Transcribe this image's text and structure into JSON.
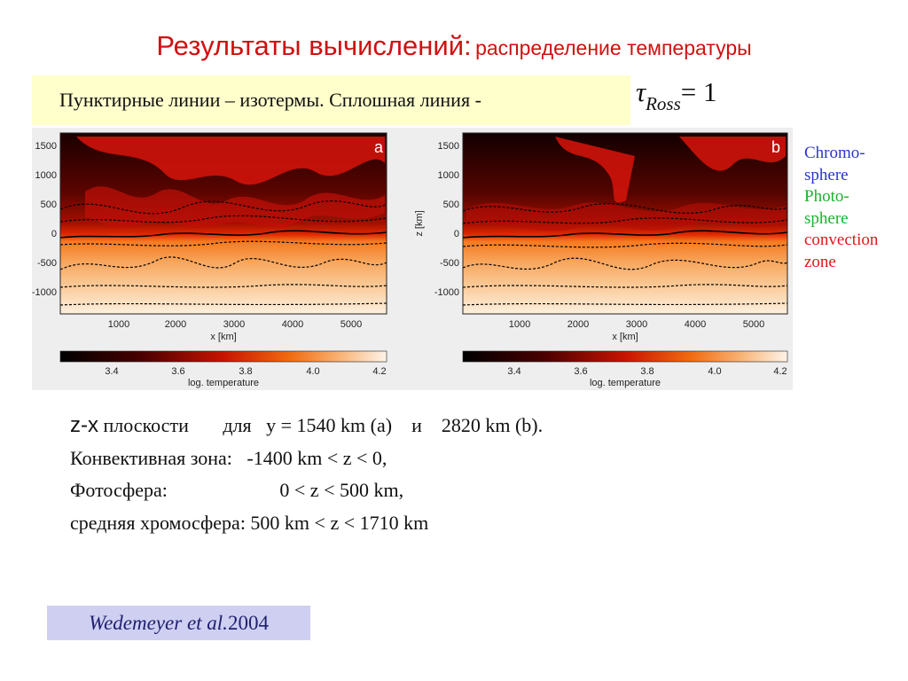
{
  "title": {
    "main": "Результаты вычислений:",
    "sub": "распределение температуры"
  },
  "note": {
    "text": "Пунктирные линии – изотермы. Сплошная линия -"
  },
  "tau": {
    "symbol": "τ",
    "sub": "Ross",
    "eq": "= 1"
  },
  "legend": {
    "items": [
      {
        "text": "Chromo-",
        "color": "#2a36c8"
      },
      {
        "text": "sphere",
        "color": "#2a36c8"
      },
      {
        "text": "Photo-",
        "color": "#18b42a"
      },
      {
        "text": "sphere",
        "color": "#18b42a"
      },
      {
        "text": "convection",
        "color": "#e01818"
      },
      {
        "text": "zone",
        "color": "#e01818"
      }
    ]
  },
  "panels": [
    {
      "letter": "a",
      "z_axis_label": ""
    },
    {
      "letter": "b",
      "z_axis_label": "z [km]"
    }
  ],
  "axes": {
    "x_label": "x [km]",
    "x_ticks": [
      "1000",
      "2000",
      "3000",
      "4000",
      "5000"
    ],
    "z_ticks": [
      "1500",
      "1000",
      "500",
      "0",
      "-500",
      "-1000"
    ],
    "colorbar_label": "log. temperature",
    "colorbar_ticks": [
      "3.4",
      "3.6",
      "3.8",
      "4.0",
      "4.2"
    ]
  },
  "body": {
    "line1_zx": "z-x",
    "line1_rest": " плоскости       для   y = 1540 km (a)    и    2820 km (b).",
    "line2": "Конвективная зона:   -1400 km < z < 0,",
    "line3": "Фотосфера:                       0 < z < 500 km,",
    "line4": "средняя хромосфера: 500 km < z < 1710 km"
  },
  "citation": {
    "authors": "Wedemeyer et al.",
    "year": " 2004"
  },
  "colors": {
    "title": "#d01010",
    "note_box_bg": "#ffffcc",
    "citation_box_bg": "#cfcff2",
    "chromosphere": "#2a36c8",
    "photosphere": "#18b42a",
    "convection_zone": "#e01818"
  }
}
